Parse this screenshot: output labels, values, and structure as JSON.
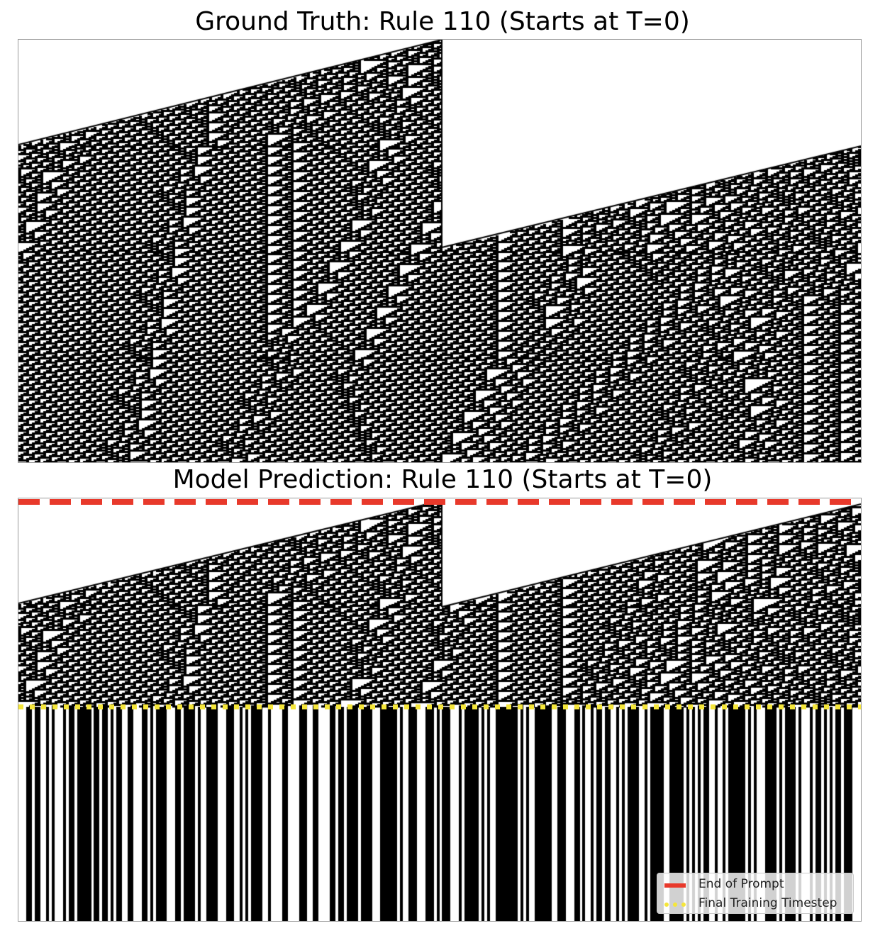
{
  "chart_data": [
    {
      "type": "heatmap",
      "title": "Ground Truth: Rule 110 (Starts at T=0)",
      "rule": 110,
      "description_values": "binary cellular automaton state grid; black = 1, white = 0; rows = timesteps, columns = cells",
      "colors": {
        "on": "#000000",
        "off": "#ffffff"
      }
    },
    {
      "type": "heatmap",
      "title": "Model Prediction: Rule 110 (Starts at T=0)",
      "rule": 110,
      "colors": {
        "on": "#000000",
        "off": "#ffffff"
      },
      "annotations": [
        {
          "label": "End of Prompt",
          "style": "dashed",
          "color": "#e8392b"
        },
        {
          "label": "Final Training Timestep",
          "style": "dotted",
          "color": "#f5e63a"
        }
      ],
      "legend_position": "bottom-right"
    }
  ],
  "titles": {
    "ground_truth": "Ground Truth: Rule 110 (Starts at T=0)",
    "model_prediction": "Model Prediction: Rule 110 (Starts at T=0)"
  },
  "legend": {
    "end_of_prompt": "End of Prompt",
    "final_training_timestep": "Final Training Timestep"
  }
}
